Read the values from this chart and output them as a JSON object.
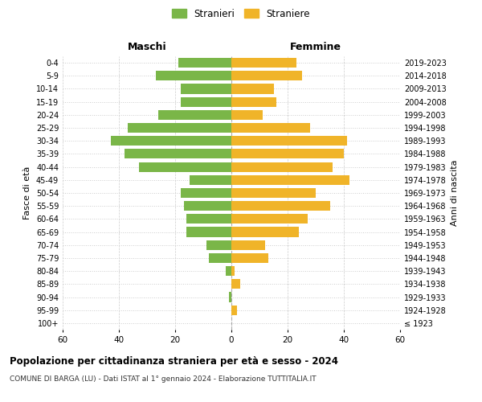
{
  "age_groups": [
    "100+",
    "95-99",
    "90-94",
    "85-89",
    "80-84",
    "75-79",
    "70-74",
    "65-69",
    "60-64",
    "55-59",
    "50-54",
    "45-49",
    "40-44",
    "35-39",
    "30-34",
    "25-29",
    "20-24",
    "15-19",
    "10-14",
    "5-9",
    "0-4"
  ],
  "birth_years": [
    "≤ 1923",
    "1924-1928",
    "1929-1933",
    "1934-1938",
    "1939-1943",
    "1944-1948",
    "1949-1953",
    "1954-1958",
    "1959-1963",
    "1964-1968",
    "1969-1973",
    "1974-1978",
    "1979-1983",
    "1984-1988",
    "1989-1993",
    "1994-1998",
    "1999-2003",
    "2004-2008",
    "2009-2013",
    "2014-2018",
    "2019-2023"
  ],
  "maschi": [
    0,
    0,
    1,
    0,
    2,
    8,
    9,
    16,
    16,
    17,
    18,
    15,
    33,
    38,
    43,
    37,
    26,
    18,
    18,
    27,
    19
  ],
  "femmine": [
    0,
    2,
    0,
    3,
    1,
    13,
    12,
    24,
    27,
    35,
    30,
    42,
    36,
    40,
    41,
    28,
    11,
    16,
    15,
    25,
    23
  ],
  "male_color": "#7ab648",
  "female_color": "#f0b429",
  "background_color": "#ffffff",
  "grid_color": "#cccccc",
  "xlim": 60,
  "title": "Popolazione per cittadinanza straniera per età e sesso - 2024",
  "subtitle": "COMUNE DI BARGA (LU) - Dati ISTAT al 1° gennaio 2024 - Elaborazione TUTTITALIA.IT",
  "legend_maschi": "Stranieri",
  "legend_femmine": "Straniere",
  "xlabel_left": "Maschi",
  "xlabel_right": "Femmine",
  "ylabel_left": "Fasce di età",
  "ylabel_right": "Anni di nascita",
  "bar_height": 0.75
}
